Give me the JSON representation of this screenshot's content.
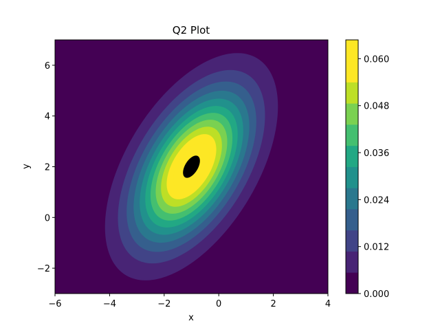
{
  "chart_data": {
    "type": "contourf",
    "title": "Q2 Plot",
    "xlabel": "x",
    "ylabel": "y",
    "xlim": [
      -6,
      4
    ],
    "ylim": [
      -3,
      7
    ],
    "xticks": [
      -6,
      -4,
      -2,
      0,
      2,
      4
    ],
    "xtick_labels": [
      "−6",
      "−4",
      "−2",
      "0",
      "2",
      "4"
    ],
    "yticks": [
      -2,
      0,
      2,
      4,
      6
    ],
    "ytick_labels": [
      "−2",
      "0",
      "2",
      "4",
      "6"
    ],
    "distribution": {
      "kind": "bivariate normal density",
      "mean": [
        -1,
        2
      ],
      "covariance": [
        [
          2,
          1.5
        ],
        [
          1.5,
          4
        ]
      ]
    },
    "levels": [
      0.0,
      0.0054,
      0.0108,
      0.0162,
      0.0216,
      0.027,
      0.0324,
      0.0378,
      0.0432,
      0.0486,
      0.054,
      0.0594,
      0.0648
    ],
    "level_colors": [
      "#440154",
      "#482475",
      "#414487",
      "#355f8d",
      "#2a788e",
      "#21918c",
      "#22a884",
      "#44bf70",
      "#7ad151",
      "#bddf26",
      "#fde725",
      "#fde725"
    ],
    "colorbar": {
      "ticks": [
        0.0,
        0.012,
        0.024,
        0.036,
        0.048,
        0.06
      ],
      "tick_labels": [
        "0.000",
        "0.012",
        "0.024",
        "0.036",
        "0.048",
        "0.060"
      ],
      "colormap": "viridis"
    },
    "grid": false
  }
}
